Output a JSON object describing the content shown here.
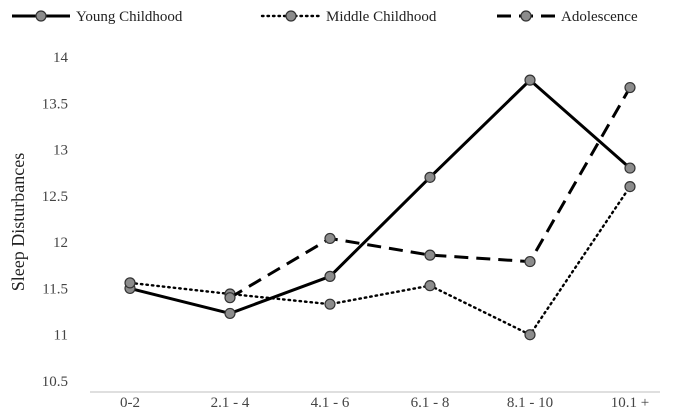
{
  "chart_data": {
    "type": "line",
    "title": "",
    "xlabel": "",
    "ylabel": "Sleep Disturbances",
    "categories": [
      "0-2",
      "2.1 - 4",
      "4.1 - 6",
      "6.1 - 8",
      "8.1 - 10",
      "10.1 +"
    ],
    "ylim": [
      10.5,
      14
    ],
    "yticks": [
      "10.5",
      "11",
      "11.5",
      "12",
      "12.5",
      "13",
      "13.5",
      "14"
    ],
    "grid": false,
    "legend_position": "top",
    "series": [
      {
        "name": "Young Childhood",
        "line_style": "solid",
        "color": "#000000",
        "values": [
          11.5,
          11.23,
          11.63,
          12.7,
          13.75,
          12.8
        ]
      },
      {
        "name": "Middle Childhood",
        "line_style": "dotted",
        "color": "#000000",
        "values": [
          11.56,
          11.44,
          11.33,
          11.53,
          11.0,
          12.6
        ]
      },
      {
        "name": "Adolescence",
        "line_style": "dashed",
        "color": "#000000",
        "values": [
          null,
          11.4,
          12.04,
          11.86,
          11.79,
          13.67
        ]
      }
    ],
    "marker_color": "#8c8c8c"
  }
}
